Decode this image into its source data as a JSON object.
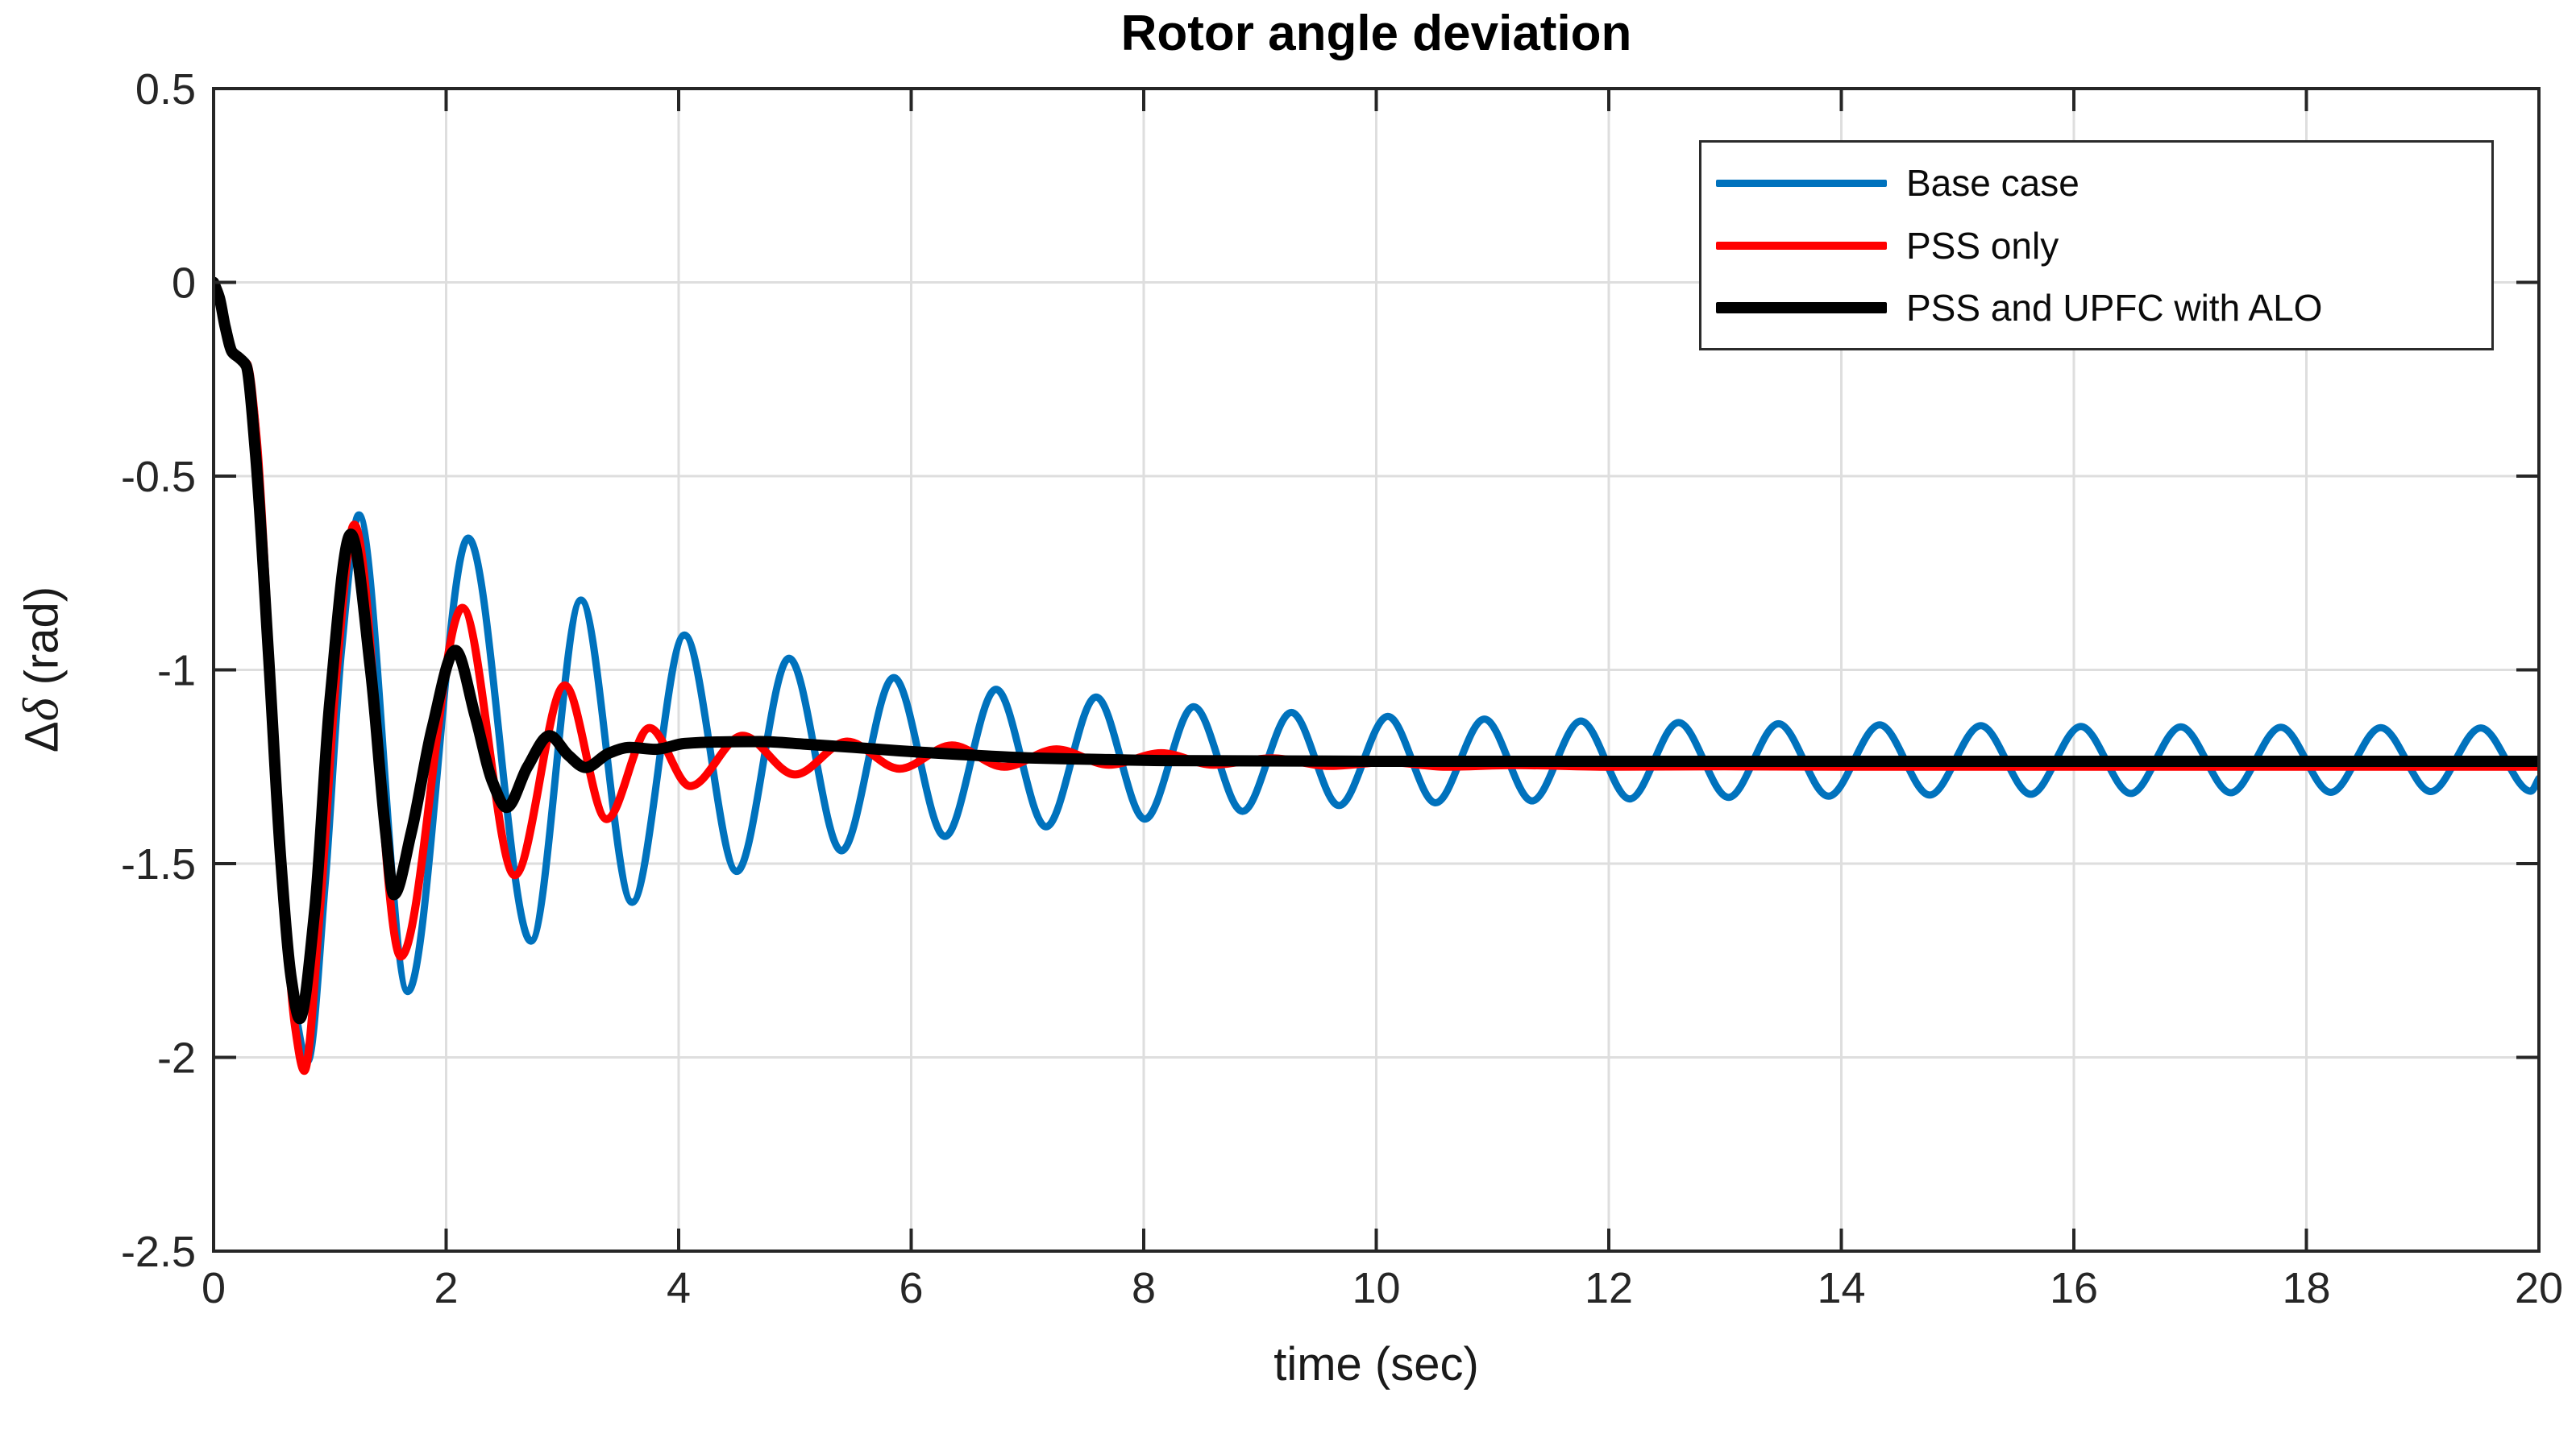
{
  "chart_data": {
    "type": "line",
    "title": "Rotor angle deviation",
    "xlabel": "time (sec)",
    "ylabel": "Δδ (rad)",
    "ylabel_parts": {
      "cap_delta": "Δ",
      "small_delta": "δ",
      "unit": " (rad)"
    },
    "xlim": [
      0,
      20
    ],
    "ylim": [
      -2.5,
      0.5
    ],
    "x_ticks": [
      0,
      2,
      4,
      6,
      8,
      10,
      12,
      14,
      16,
      18,
      20
    ],
    "x_tick_labels": [
      "0",
      "2",
      "4",
      "6",
      "8",
      "10",
      "12",
      "14",
      "16",
      "18",
      "20"
    ],
    "y_ticks": [
      0.5,
      0,
      -0.5,
      -1,
      -1.5,
      -2,
      -2.5
    ],
    "y_tick_labels": [
      "0.5",
      "0",
      "-0.5",
      "-1",
      "-1.5",
      "-2",
      "-2.5"
    ],
    "grid": true,
    "legend_position": "northeast",
    "colors": {
      "axis": "#262626",
      "grid": "#dedede",
      "tick_label": "#262626",
      "background": "#ffffff"
    },
    "series": [
      {
        "name": "Base case",
        "color": "#0072BD",
        "width": 9,
        "points": [
          [
            0,
            0
          ],
          [
            0.05,
            -0.04
          ],
          [
            0.1,
            -0.115
          ],
          [
            0.16,
            -0.18
          ],
          [
            0.22,
            -0.195
          ],
          [
            0.28,
            -0.205
          ],
          [
            0.35,
            -0.33
          ],
          [
            0.45,
            -0.78
          ],
          [
            0.57,
            -1.4
          ],
          [
            0.69,
            -1.85
          ],
          [
            0.81,
            -2.01
          ],
          [
            0.96,
            -1.55
          ],
          [
            1.1,
            -0.95
          ],
          [
            1.25,
            -0.6
          ],
          [
            1.67,
            -1.83
          ],
          [
            2.19,
            -0.66
          ],
          [
            2.73,
            -1.7
          ],
          [
            3.16,
            -0.82
          ],
          [
            3.6,
            -1.6
          ],
          [
            4.05,
            -0.91
          ],
          [
            4.5,
            -1.52
          ],
          [
            4.95,
            -0.97
          ],
          [
            5.4,
            -1.467
          ],
          [
            5.85,
            -1.02
          ],
          [
            6.29,
            -1.43
          ],
          [
            6.73,
            -1.05
          ],
          [
            7.16,
            -1.405
          ],
          [
            7.59,
            -1.07
          ],
          [
            8.01,
            -1.385
          ],
          [
            8.43,
            -1.095
          ],
          [
            8.85,
            -1.365
          ],
          [
            9.27,
            -1.11
          ],
          [
            9.68,
            -1.35
          ],
          [
            10.1,
            -1.12
          ],
          [
            10.51,
            -1.343
          ],
          [
            10.93,
            -1.127
          ],
          [
            11.34,
            -1.338
          ],
          [
            11.76,
            -1.132
          ],
          [
            12.18,
            -1.333
          ],
          [
            12.6,
            -1.136
          ],
          [
            13.03,
            -1.329
          ],
          [
            13.46,
            -1.139
          ],
          [
            13.89,
            -1.326
          ],
          [
            14.33,
            -1.142
          ],
          [
            14.76,
            -1.323
          ],
          [
            15.2,
            -1.144
          ],
          [
            15.63,
            -1.321
          ],
          [
            16.06,
            -1.146
          ],
          [
            16.49,
            -1.319
          ],
          [
            16.92,
            -1.147
          ],
          [
            17.35,
            -1.317
          ],
          [
            17.78,
            -1.148
          ],
          [
            18.21,
            -1.316
          ],
          [
            18.64,
            -1.149
          ],
          [
            19.07,
            -1.314
          ],
          [
            19.5,
            -1.15
          ],
          [
            19.93,
            -1.313
          ],
          [
            20,
            -1.28
          ]
        ]
      },
      {
        "name": "PSS only",
        "color": "#FF0000",
        "width": 10,
        "points": [
          [
            0,
            0
          ],
          [
            0.05,
            -0.04
          ],
          [
            0.1,
            -0.115
          ],
          [
            0.16,
            -0.18
          ],
          [
            0.22,
            -0.195
          ],
          [
            0.29,
            -0.21
          ],
          [
            0.37,
            -0.4
          ],
          [
            0.48,
            -0.95
          ],
          [
            0.6,
            -1.55
          ],
          [
            0.7,
            -1.92
          ],
          [
            0.78,
            -2.035
          ],
          [
            0.92,
            -1.6
          ],
          [
            1.06,
            -1.0
          ],
          [
            1.21,
            -0.625
          ],
          [
            1.61,
            -1.74
          ],
          [
            2.14,
            -0.84
          ],
          [
            2.59,
            -1.53
          ],
          [
            3.02,
            -1.04
          ],
          [
            3.38,
            -1.385
          ],
          [
            3.75,
            -1.15
          ],
          [
            4.1,
            -1.3
          ],
          [
            4.55,
            -1.17
          ],
          [
            5.0,
            -1.27
          ],
          [
            5.45,
            -1.185
          ],
          [
            5.9,
            -1.255
          ],
          [
            6.35,
            -1.195
          ],
          [
            6.8,
            -1.25
          ],
          [
            7.25,
            -1.205
          ],
          [
            7.7,
            -1.245
          ],
          [
            8.15,
            -1.215
          ],
          [
            8.6,
            -1.245
          ],
          [
            9.1,
            -1.228
          ],
          [
            9.6,
            -1.248
          ],
          [
            10.1,
            -1.238
          ],
          [
            10.6,
            -1.25
          ],
          [
            11.2,
            -1.246
          ],
          [
            12,
            -1.25
          ],
          [
            13,
            -1.249
          ],
          [
            14,
            -1.25
          ],
          [
            16,
            -1.25
          ],
          [
            18,
            -1.25
          ],
          [
            20,
            -1.25
          ]
        ]
      },
      {
        "name": "PSS and UPFC with ALO",
        "color": "#000000",
        "width": 14,
        "points": [
          [
            0,
            0
          ],
          [
            0.05,
            -0.04
          ],
          [
            0.1,
            -0.115
          ],
          [
            0.16,
            -0.18
          ],
          [
            0.22,
            -0.195
          ],
          [
            0.28,
            -0.215
          ],
          [
            0.36,
            -0.44
          ],
          [
            0.47,
            -0.95
          ],
          [
            0.58,
            -1.5
          ],
          [
            0.67,
            -1.8
          ],
          [
            0.74,
            -1.9
          ],
          [
            0.87,
            -1.62
          ],
          [
            1.0,
            -1.08
          ],
          [
            1.18,
            -0.65
          ],
          [
            1.35,
            -1.0
          ],
          [
            1.48,
            -1.42
          ],
          [
            1.55,
            -1.58
          ],
          [
            1.7,
            -1.42
          ],
          [
            1.88,
            -1.15
          ],
          [
            2.08,
            -0.95
          ],
          [
            2.25,
            -1.12
          ],
          [
            2.4,
            -1.29
          ],
          [
            2.52,
            -1.355
          ],
          [
            2.7,
            -1.25
          ],
          [
            2.89,
            -1.17
          ],
          [
            3.05,
            -1.22
          ],
          [
            3.2,
            -1.252
          ],
          [
            3.4,
            -1.215
          ],
          [
            3.58,
            -1.2
          ],
          [
            3.8,
            -1.205
          ],
          [
            4.05,
            -1.19
          ],
          [
            4.35,
            -1.186
          ],
          [
            4.7,
            -1.185
          ],
          [
            5.1,
            -1.192
          ],
          [
            5.5,
            -1.2
          ],
          [
            5.9,
            -1.209
          ],
          [
            6.4,
            -1.218
          ],
          [
            7.0,
            -1.227
          ],
          [
            7.6,
            -1.231
          ],
          [
            8.2,
            -1.234
          ],
          [
            9.0,
            -1.235
          ],
          [
            10,
            -1.236
          ],
          [
            12,
            -1.236
          ],
          [
            14,
            -1.236
          ],
          [
            16,
            -1.236
          ],
          [
            18,
            -1.236
          ],
          [
            20,
            -1.236
          ]
        ]
      }
    ]
  }
}
